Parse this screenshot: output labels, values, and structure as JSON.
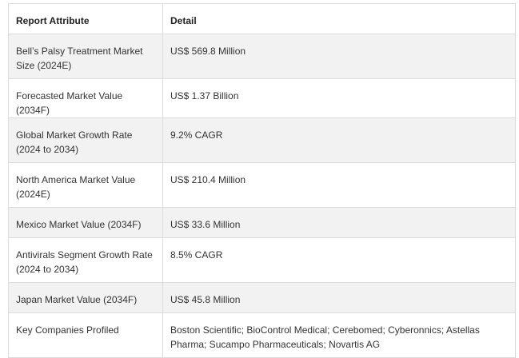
{
  "table": {
    "headers": [
      "Report Attribute",
      "Detail"
    ],
    "rows": [
      {
        "attribute": "Bell’s Palsy Treatment Market Size (2024E)",
        "detail": "US$ 569.8 Million"
      },
      {
        "attribute": "Forecasted Market Value (2034F)",
        "detail": "US$ 1.37 Billion"
      },
      {
        "attribute": "Global Market Growth Rate (2024 to 2034)",
        "detail": "9.2% CAGR"
      },
      {
        "attribute": "North America Market Value (2024E)",
        "detail": "US$ 210.4 Million"
      },
      {
        "attribute": "Mexico Market Value (2034F)",
        "detail": "US$ 33.6 Million"
      },
      {
        "attribute": "Antivirals Segment Growth Rate (2024 to 2034)",
        "detail": "8.5% CAGR"
      },
      {
        "attribute": "Japan Market Value (2034F)",
        "detail": "US$ 45.8 Million"
      },
      {
        "attribute": "Key Companies Profiled",
        "detail": "Boston Scientific; BioControl Medical; Cerebomed; Cyberonnics; Astellas Pharma; Sucampo Pharmaceuticals; Novartis AG"
      }
    ]
  }
}
